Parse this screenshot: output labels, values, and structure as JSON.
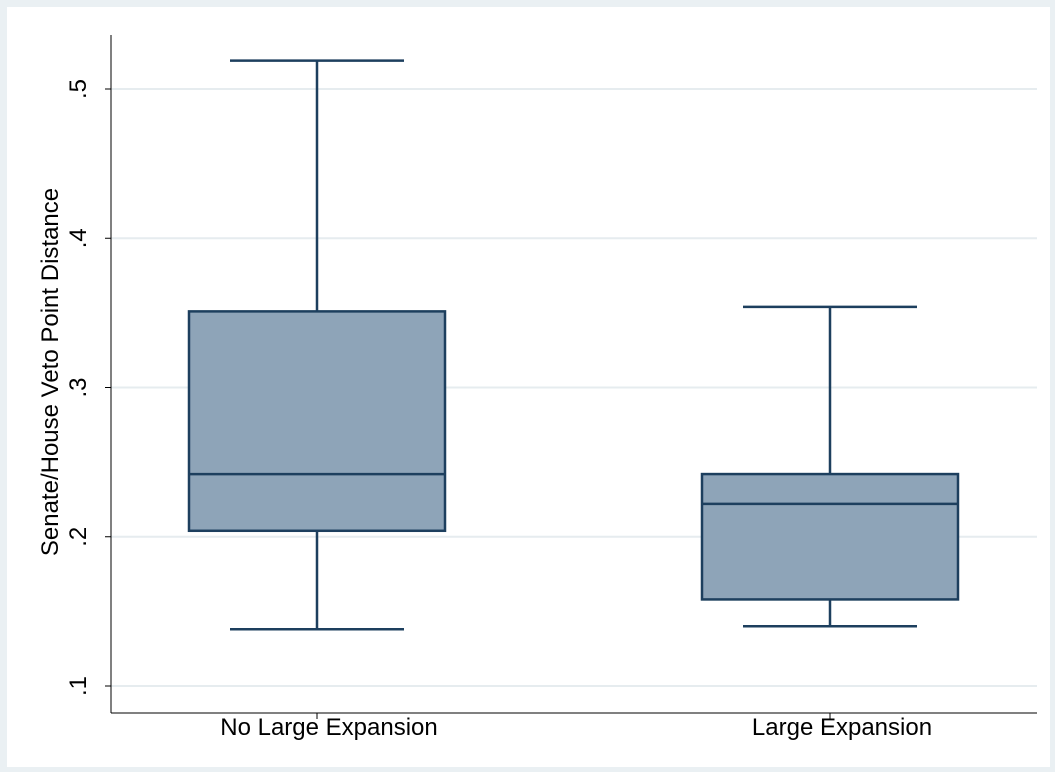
{
  "chart_data": {
    "type": "box",
    "ylabel": "Senate/House Veto Point Distance",
    "xlabel": "",
    "ylim": [
      0.1,
      0.55
    ],
    "yticks": [
      {
        "value": 0.1,
        "label": ".1"
      },
      {
        "value": 0.2,
        "label": ".2"
      },
      {
        "value": 0.3,
        "label": ".3"
      },
      {
        "value": 0.4,
        "label": ".4"
      },
      {
        "value": 0.5,
        "label": ".5"
      }
    ],
    "grid": true,
    "categories": [
      "No Large Expansion",
      "Large Expansion"
    ],
    "boxes": [
      {
        "category": "No Large Expansion",
        "whisker_low": 0.138,
        "q1": 0.204,
        "median": 0.242,
        "q3": 0.351,
        "whisker_high": 0.519
      },
      {
        "category": "Large Expansion",
        "whisker_low": 0.14,
        "q1": 0.158,
        "median": 0.222,
        "q3": 0.242,
        "whisker_high": 0.354
      }
    ],
    "colors": {
      "box_fill": "#8ea4b8",
      "box_stroke": "#1d3f5e",
      "grid": "#e6ecef",
      "background": "#eaf0f3"
    }
  }
}
